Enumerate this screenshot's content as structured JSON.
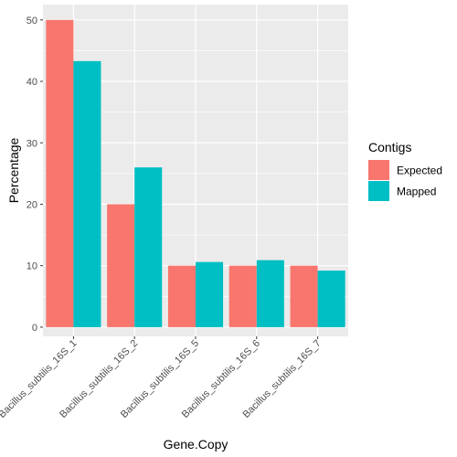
{
  "chart_data": {
    "type": "bar",
    "categories": [
      "Bacillus_subtilis_16S_1",
      "Bacillus_subtilis_16S_2",
      "Bacillus_subtilis_16S_5",
      "Bacillus_subtilis_16S_6",
      "Bacillus_subtilis_16S_7"
    ],
    "series": [
      {
        "name": "Expected",
        "values": [
          50,
          20,
          10,
          10,
          10
        ],
        "color": "#F8766D"
      },
      {
        "name": "Mapped",
        "values": [
          43.3,
          26.0,
          10.6,
          10.9,
          9.2
        ],
        "color": "#00BFC4"
      }
    ],
    "title": "",
    "xlabel": "Gene.Copy",
    "ylabel": "Percentage",
    "ylim": [
      -1.5,
      52.5
    ],
    "yticks": [
      0,
      10,
      20,
      30,
      40,
      50
    ],
    "yticklabels": [
      "0",
      "10",
      "20",
      "30",
      "40",
      "50"
    ],
    "grid": true,
    "panel_background": "#EBEBEB",
    "legend": {
      "title": "Contigs",
      "position": "right",
      "labels": [
        "Expected",
        "Mapped"
      ]
    }
  }
}
